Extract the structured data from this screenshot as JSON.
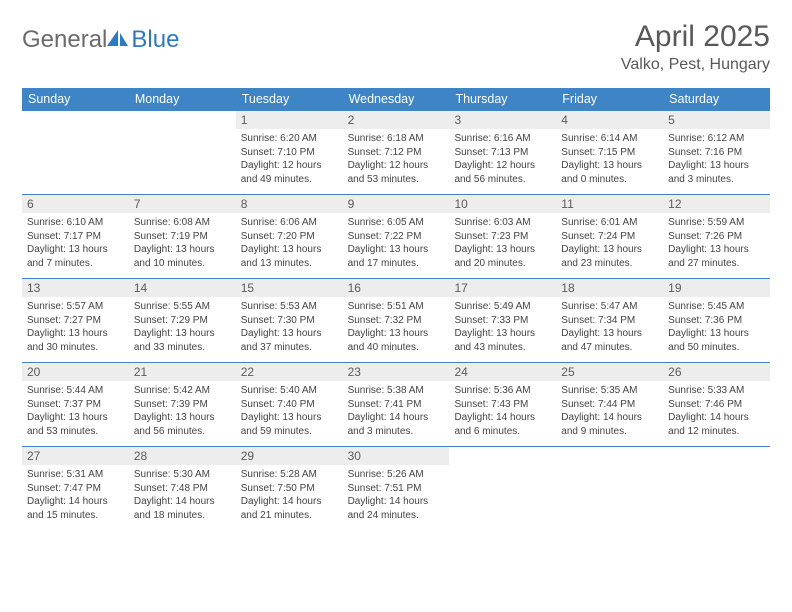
{
  "logo": {
    "general": "General",
    "blue": "Blue"
  },
  "title": "April 2025",
  "location": "Valko, Pest, Hungary",
  "calendar": {
    "header_bg": "#3d85c6",
    "header_fg": "#ffffff",
    "daynum_bg": "#ededed",
    "daynum_fg": "#5b5b5b",
    "border_color": "#3d85c6",
    "text_color": "#444444",
    "days_of_week": [
      "Sunday",
      "Monday",
      "Tuesday",
      "Wednesday",
      "Thursday",
      "Friday",
      "Saturday"
    ],
    "weeks": [
      [
        null,
        null,
        {
          "n": "1",
          "sunrise": "6:20 AM",
          "sunset": "7:10 PM",
          "daylight": "12 hours and 49 minutes."
        },
        {
          "n": "2",
          "sunrise": "6:18 AM",
          "sunset": "7:12 PM",
          "daylight": "12 hours and 53 minutes."
        },
        {
          "n": "3",
          "sunrise": "6:16 AM",
          "sunset": "7:13 PM",
          "daylight": "12 hours and 56 minutes."
        },
        {
          "n": "4",
          "sunrise": "6:14 AM",
          "sunset": "7:15 PM",
          "daylight": "13 hours and 0 minutes."
        },
        {
          "n": "5",
          "sunrise": "6:12 AM",
          "sunset": "7:16 PM",
          "daylight": "13 hours and 3 minutes."
        }
      ],
      [
        {
          "n": "6",
          "sunrise": "6:10 AM",
          "sunset": "7:17 PM",
          "daylight": "13 hours and 7 minutes."
        },
        {
          "n": "7",
          "sunrise": "6:08 AM",
          "sunset": "7:19 PM",
          "daylight": "13 hours and 10 minutes."
        },
        {
          "n": "8",
          "sunrise": "6:06 AM",
          "sunset": "7:20 PM",
          "daylight": "13 hours and 13 minutes."
        },
        {
          "n": "9",
          "sunrise": "6:05 AM",
          "sunset": "7:22 PM",
          "daylight": "13 hours and 17 minutes."
        },
        {
          "n": "10",
          "sunrise": "6:03 AM",
          "sunset": "7:23 PM",
          "daylight": "13 hours and 20 minutes."
        },
        {
          "n": "11",
          "sunrise": "6:01 AM",
          "sunset": "7:24 PM",
          "daylight": "13 hours and 23 minutes."
        },
        {
          "n": "12",
          "sunrise": "5:59 AM",
          "sunset": "7:26 PM",
          "daylight": "13 hours and 27 minutes."
        }
      ],
      [
        {
          "n": "13",
          "sunrise": "5:57 AM",
          "sunset": "7:27 PM",
          "daylight": "13 hours and 30 minutes."
        },
        {
          "n": "14",
          "sunrise": "5:55 AM",
          "sunset": "7:29 PM",
          "daylight": "13 hours and 33 minutes."
        },
        {
          "n": "15",
          "sunrise": "5:53 AM",
          "sunset": "7:30 PM",
          "daylight": "13 hours and 37 minutes."
        },
        {
          "n": "16",
          "sunrise": "5:51 AM",
          "sunset": "7:32 PM",
          "daylight": "13 hours and 40 minutes."
        },
        {
          "n": "17",
          "sunrise": "5:49 AM",
          "sunset": "7:33 PM",
          "daylight": "13 hours and 43 minutes."
        },
        {
          "n": "18",
          "sunrise": "5:47 AM",
          "sunset": "7:34 PM",
          "daylight": "13 hours and 47 minutes."
        },
        {
          "n": "19",
          "sunrise": "5:45 AM",
          "sunset": "7:36 PM",
          "daylight": "13 hours and 50 minutes."
        }
      ],
      [
        {
          "n": "20",
          "sunrise": "5:44 AM",
          "sunset": "7:37 PM",
          "daylight": "13 hours and 53 minutes."
        },
        {
          "n": "21",
          "sunrise": "5:42 AM",
          "sunset": "7:39 PM",
          "daylight": "13 hours and 56 minutes."
        },
        {
          "n": "22",
          "sunrise": "5:40 AM",
          "sunset": "7:40 PM",
          "daylight": "13 hours and 59 minutes."
        },
        {
          "n": "23",
          "sunrise": "5:38 AM",
          "sunset": "7:41 PM",
          "daylight": "14 hours and 3 minutes."
        },
        {
          "n": "24",
          "sunrise": "5:36 AM",
          "sunset": "7:43 PM",
          "daylight": "14 hours and 6 minutes."
        },
        {
          "n": "25",
          "sunrise": "5:35 AM",
          "sunset": "7:44 PM",
          "daylight": "14 hours and 9 minutes."
        },
        {
          "n": "26",
          "sunrise": "5:33 AM",
          "sunset": "7:46 PM",
          "daylight": "14 hours and 12 minutes."
        }
      ],
      [
        {
          "n": "27",
          "sunrise": "5:31 AM",
          "sunset": "7:47 PM",
          "daylight": "14 hours and 15 minutes."
        },
        {
          "n": "28",
          "sunrise": "5:30 AM",
          "sunset": "7:48 PM",
          "daylight": "14 hours and 18 minutes."
        },
        {
          "n": "29",
          "sunrise": "5:28 AM",
          "sunset": "7:50 PM",
          "daylight": "14 hours and 21 minutes."
        },
        {
          "n": "30",
          "sunrise": "5:26 AM",
          "sunset": "7:51 PM",
          "daylight": "14 hours and 24 minutes."
        },
        null,
        null,
        null
      ]
    ],
    "labels": {
      "sunrise": "Sunrise:",
      "sunset": "Sunset:",
      "daylight": "Daylight:"
    }
  }
}
